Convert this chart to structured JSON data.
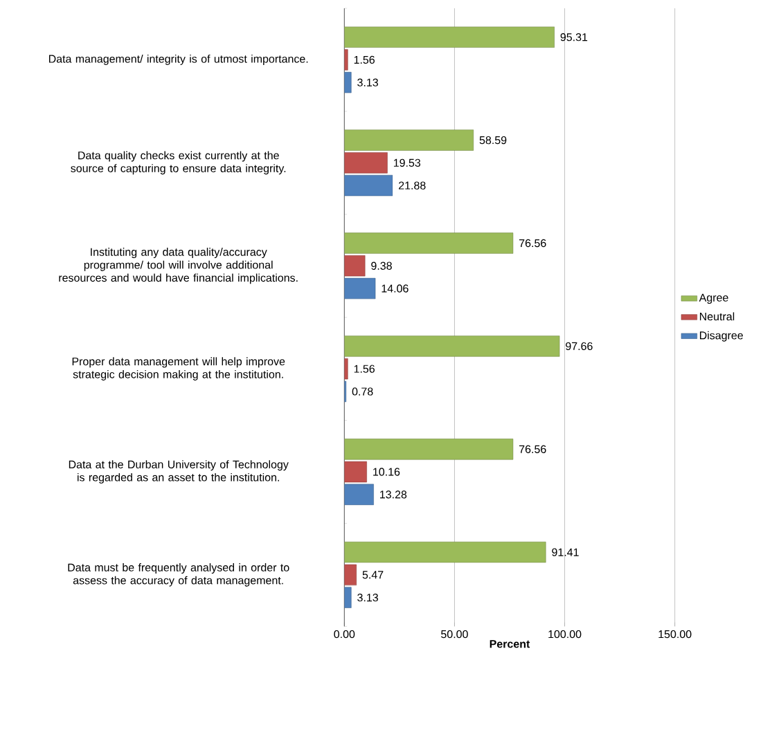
{
  "chart_data": {
    "type": "bar",
    "orientation": "horizontal",
    "xlabel": "Percent",
    "categories": [
      "Data management/  integrity is of utmost importance.",
      "Data quality checks exist currently at the source of capturing to ensure data integrity.",
      "Instituting any data quality/accuracy programme/ tool will involve additional resources and would have financial implications.",
      "Proper data management  will help improve strategic decision making at the institution.",
      "Data at the Durban University of Technology is regarded as an asset to the institution.",
      "Data must be frequently analysed in order to assess the accuracy of data management."
    ],
    "series": [
      {
        "name": "Agree",
        "color": "#9bbb59",
        "values": [
          95.31,
          58.59,
          76.56,
          97.66,
          76.56,
          91.41
        ]
      },
      {
        "name": "Neutral",
        "color": "#c0504d",
        "values": [
          1.56,
          19.53,
          9.38,
          1.56,
          10.16,
          5.47
        ]
      },
      {
        "name": "Disagree",
        "color": "#4f81bd",
        "values": [
          3.13,
          21.88,
          14.06,
          0.78,
          13.28,
          3.13
        ]
      }
    ],
    "xlim": [
      0,
      150
    ],
    "xticks": [
      {
        "value": 0,
        "label": "0.00"
      },
      {
        "value": 50,
        "label": "50.00"
      },
      {
        "value": 100,
        "label": "100.00"
      },
      {
        "value": 150,
        "label": "150.00"
      }
    ],
    "grid": "x",
    "legend": "right",
    "data_labels": true
  }
}
